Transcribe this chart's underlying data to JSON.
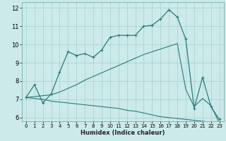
{
  "title": "",
  "xlabel": "Humidex (Indice chaleur)",
  "xlim": [
    -0.5,
    23.5
  ],
  "ylim": [
    5.8,
    12.3
  ],
  "yticks": [
    6,
    7,
    8,
    9,
    10,
    11,
    12
  ],
  "xticks": [
    0,
    1,
    2,
    3,
    4,
    5,
    6,
    7,
    8,
    9,
    10,
    11,
    12,
    13,
    14,
    15,
    16,
    17,
    18,
    19,
    20,
    21,
    22,
    23
  ],
  "bg_color": "#cceaea",
  "grid_color": "#aad4d4",
  "line_color": "#2a7a7a",
  "line1_x": [
    0,
    1,
    2,
    3,
    4,
    5,
    6,
    7,
    8,
    9,
    10,
    11,
    12,
    13,
    14,
    15,
    16,
    17,
    18,
    19,
    20,
    21,
    22,
    23
  ],
  "line1_y": [
    7.1,
    7.8,
    6.8,
    7.3,
    8.5,
    9.6,
    9.4,
    9.5,
    9.3,
    9.7,
    10.4,
    10.5,
    10.5,
    10.5,
    11.0,
    11.05,
    11.4,
    11.9,
    11.5,
    10.3,
    6.5,
    8.2,
    6.6,
    5.9
  ],
  "line2_x": [
    0,
    1,
    2,
    3,
    4,
    5,
    6,
    7,
    8,
    9,
    10,
    11,
    12,
    13,
    14,
    15,
    16,
    17,
    18,
    19,
    20,
    21,
    22,
    23
  ],
  "line2_y": [
    7.1,
    7.05,
    7.0,
    6.9,
    6.85,
    6.8,
    6.75,
    6.7,
    6.65,
    6.6,
    6.55,
    6.5,
    6.4,
    6.35,
    6.25,
    6.15,
    6.05,
    6.0,
    5.95,
    5.9,
    5.85,
    5.8,
    5.75,
    5.7
  ],
  "line3_x": [
    0,
    1,
    2,
    3,
    4,
    5,
    6,
    7,
    8,
    9,
    10,
    11,
    12,
    13,
    14,
    15,
    16,
    17,
    18,
    19,
    20,
    21,
    22,
    23
  ],
  "line3_y": [
    7.1,
    7.15,
    7.2,
    7.25,
    7.4,
    7.6,
    7.8,
    8.05,
    8.25,
    8.45,
    8.65,
    8.85,
    9.05,
    9.25,
    9.45,
    9.6,
    9.75,
    9.9,
    10.05,
    7.55,
    6.6,
    7.05,
    6.65,
    5.7
  ]
}
